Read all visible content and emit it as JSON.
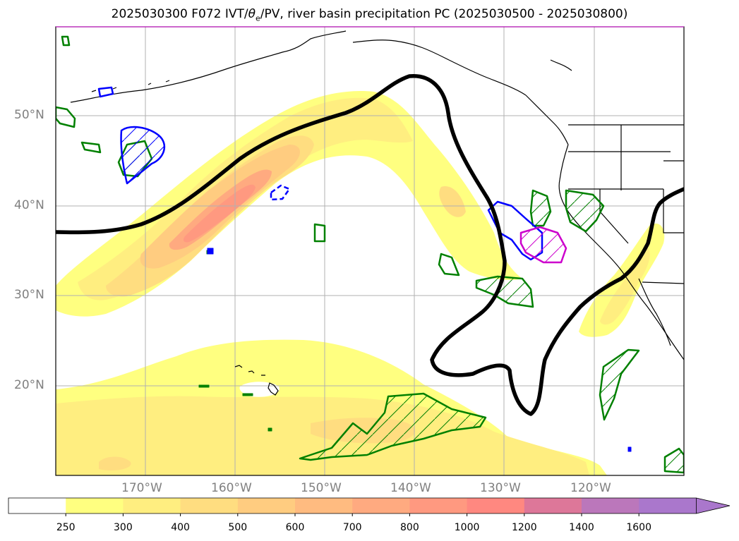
{
  "title": {
    "prefix": "2025030300 F072 IVT/",
    "theta_symbol": "θ",
    "theta_sub": "e",
    "suffix": "/PV, river basin precipitation PC (2025030500 - 2025030800)"
  },
  "lat_labels": [
    "50°N",
    "40°N",
    "30°N",
    "20°N"
  ],
  "lon_labels": [
    "170°W",
    "160°W",
    "150°W",
    "140°W",
    "130°W",
    "120°W"
  ],
  "colorbar": {
    "ticks": [
      "250",
      "300",
      "400",
      "500",
      "600",
      "700",
      "800",
      "1000",
      "1200",
      "1400",
      "1600"
    ],
    "colors": [
      "#ffffff",
      "#ffff80",
      "#ffee80",
      "#ffdd80",
      "#ffcc80",
      "#ffbb80",
      "#ffaa80",
      "#ff9980",
      "#ff8880",
      "#dd7799",
      "#bb77bb",
      "#aa77cc"
    ],
    "extend": "max"
  },
  "colors": {
    "pv_contour": "#000000",
    "basin_green": "#008000",
    "basin_blue": "#0000ff",
    "basin_magenta": "#cc00cc",
    "coastline": "#000000",
    "grid": "#b0b0b0"
  }
}
